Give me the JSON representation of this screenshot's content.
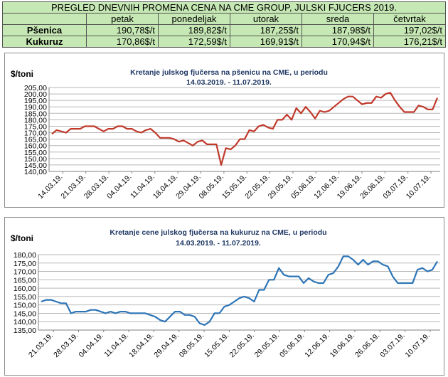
{
  "table": {
    "title": "PREGLED DNEVNIH PROMENA CENA NA CME GROUP, JULSKI  FJUCERS 2019.",
    "days": [
      "petak",
      "ponedeljak",
      "utorak",
      "sreda",
      "četvrtak"
    ],
    "rows": [
      {
        "label": "Pšenica",
        "values": [
          "190,78$/t",
          "189,82$/t",
          "187,25$/t",
          "187,98$/t",
          "197,02$/t"
        ]
      },
      {
        "label": "Kukuruz",
        "values": [
          "170,86$/t",
          "172,59$/t",
          "169,91$/t",
          "170,94$/t",
          "176,21$/t"
        ]
      }
    ]
  },
  "chart_data": [
    {
      "type": "line",
      "title": "Kretanje julskog fjučersa na  pšenicu na CME, u periodu",
      "subtitle": "14.03.2019. - 11.07.2019.",
      "ylabel": "$/toni",
      "ylim": [
        140,
        205
      ],
      "ytick_step": 5,
      "yticks": [
        "140,00",
        "145,00",
        "150,00",
        "155,00",
        "160,00",
        "165,00",
        "170,00",
        "175,00",
        "180,00",
        "185,00",
        "190,00",
        "195,00",
        "200,00",
        "205,00"
      ],
      "xticks": [
        "14.03.19.",
        "21.03.19.",
        "28.03.19.",
        "04.04.19.",
        "11.04.19.",
        "18.04.19.",
        "29.04.19.",
        "08.05.19.",
        "15.05.19.",
        "22.05.19.",
        "29.05.19.",
        "05.06.19.",
        "12.06.19.",
        "19.06.19.",
        "26.06.19.",
        "03.07.19.",
        "10.07.19."
      ],
      "grid": true,
      "color": "#c0392b",
      "series": [
        {
          "values": [
            169,
            172,
            171,
            170,
            173,
            173,
            173,
            175,
            175,
            175,
            173,
            171,
            173,
            173,
            175,
            175,
            173,
            173,
            171,
            170,
            172,
            173,
            170,
            166,
            166,
            166,
            165,
            163,
            164,
            162,
            160,
            163,
            164,
            161,
            161,
            161,
            145,
            158,
            157,
            160,
            165,
            165,
            172,
            171,
            175,
            176,
            174,
            173,
            180,
            180,
            184,
            180,
            189,
            185,
            190,
            186,
            181,
            187,
            186,
            187,
            190,
            193,
            196,
            198,
            198,
            195,
            192,
            193,
            193,
            198,
            197,
            200,
            201,
            195,
            190,
            186,
            186,
            186,
            191,
            190,
            188,
            188,
            197
          ]
        }
      ]
    },
    {
      "type": "line",
      "title": "Kretanje cene julskog fjučersa na  kukuruz na CME, u periodu",
      "subtitle": "14.03.2019. - 11.07.2019.",
      "ylabel": "$/toni",
      "ylim": [
        135,
        180
      ],
      "ytick_step": 5,
      "yticks": [
        "135,00",
        "140,00",
        "145,00",
        "150,00",
        "155,00",
        "160,00",
        "165,00",
        "170,00",
        "175,00",
        "180,00"
      ],
      "xticks": [
        "21.03.19.",
        "28.03.19.",
        "04.04.19.",
        "11.04.19.",
        "18.04.19.",
        "29.04.19.",
        "08.05.19.",
        "15.05.19.",
        "22.05.19.",
        "29.05.19.",
        "05.06.19.",
        "12.06.19.",
        "19.06.19.",
        "26.06.19.",
        "03.07.19.",
        "10.07.19."
      ],
      "grid": true,
      "color": "#2e75b6",
      "series": [
        {
          "values": [
            152,
            153,
            153,
            152,
            151,
            151,
            145,
            146,
            146,
            146,
            147,
            147,
            146,
            145,
            146,
            145,
            146,
            146,
            145,
            145,
            145,
            145,
            144,
            143,
            141,
            140,
            143,
            146,
            146,
            144,
            144,
            143,
            139,
            138,
            140,
            145,
            145,
            149,
            150,
            152,
            154,
            155,
            154,
            152,
            159,
            159,
            165,
            165,
            172,
            168,
            167,
            167,
            167,
            163,
            166,
            164,
            163,
            163,
            168,
            169,
            173,
            179,
            179,
            177,
            174,
            177,
            174,
            176,
            176,
            174,
            173,
            167,
            163,
            163,
            163,
            163,
            171,
            172,
            170,
            171,
            176
          ]
        }
      ]
    }
  ]
}
